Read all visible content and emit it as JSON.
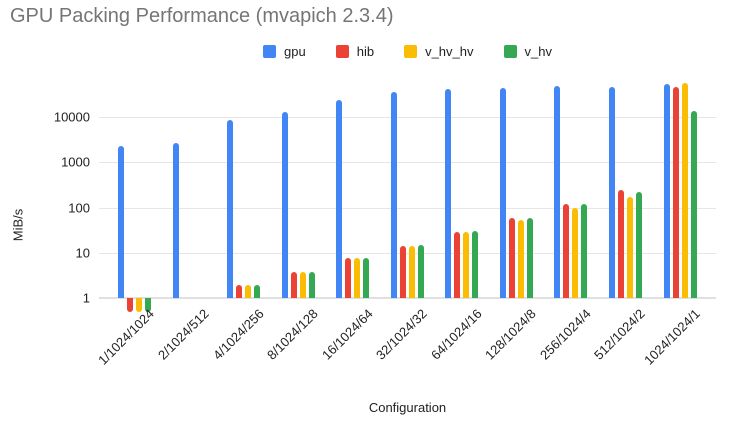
{
  "title": "GPU Packing Performance (mvapich 2.3.4)",
  "chart_data": {
    "type": "bar",
    "title": "GPU Packing Performance (mvapich 2.3.4)",
    "xlabel": "Configuration",
    "ylabel": "MiB/s",
    "y_scale": "log",
    "y_ticks": [
      1,
      10,
      100,
      1000,
      10000
    ],
    "ylim": [
      0.45,
      100000
    ],
    "grid": true,
    "legend_position": "top",
    "categories": [
      "1/1024/1024",
      "2/1024/512",
      "4/1024/256",
      "8/1024/128",
      "16/1024/64",
      "32/1024/32",
      "64/1024/16",
      "128/1024/8",
      "256/1024/4",
      "512/1024/2",
      "1024/1024/1"
    ],
    "series": [
      {
        "name": "gpu",
        "color": "#4285F4",
        "values": [
          2250,
          2750,
          8500,
          13000,
          24000,
          35500,
          43000,
          45000,
          48500,
          46000,
          54000
        ]
      },
      {
        "name": "hib",
        "color": "#EA4335",
        "values": [
          0.5,
          null,
          1.9,
          3.7,
          7.6,
          14.3,
          29,
          60,
          120,
          240,
          46000
        ]
      },
      {
        "name": "v_hv_hv",
        "color": "#FBBC04",
        "values": [
          0.5,
          null,
          1.9,
          3.7,
          7.5,
          14,
          28.5,
          53,
          100,
          170,
          56000
        ]
      },
      {
        "name": "v_hv",
        "color": "#34A853",
        "values": [
          0.5,
          null,
          1.9,
          3.8,
          7.7,
          15,
          30,
          59,
          122,
          225,
          13500
        ]
      }
    ]
  }
}
